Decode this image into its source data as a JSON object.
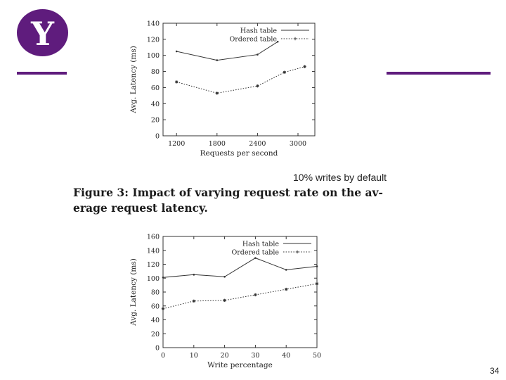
{
  "logo": {
    "letter": "Y",
    "color": "#5f1c7d"
  },
  "rule_color": "#5f1c7d",
  "annotation": "10% writes by default",
  "figure_caption": {
    "line1": "Figure 3: Impact of varying request rate on the av-",
    "line2": "erage request latency."
  },
  "page_number": "34",
  "chart_data": [
    {
      "type": "line",
      "xlabel": "Requests per second",
      "ylabel": "Avg. Latency (ms)",
      "categories": [
        "1200",
        "1800",
        "2400",
        "3000"
      ],
      "x": [
        1200,
        1800,
        2400,
        2700,
        3000
      ],
      "xlim": [
        1000,
        3250
      ],
      "ylim": [
        0,
        140
      ],
      "yticks": [
        0,
        20,
        40,
        60,
        80,
        100,
        120,
        140
      ],
      "legend_position": "top-right",
      "series": [
        {
          "name": "Hash table",
          "style": "solid",
          "x": [
            1200,
            1800,
            2400,
            2700
          ],
          "values": [
            105,
            94,
            101,
            117
          ]
        },
        {
          "name": "Ordered table",
          "style": "dotted",
          "x": [
            1200,
            1800,
            2400,
            2800,
            3100
          ],
          "values": [
            67,
            53,
            62,
            79,
            86
          ]
        }
      ]
    },
    {
      "type": "line",
      "xlabel": "Write percentage",
      "ylabel": "Avg. Latency (ms)",
      "categories": [
        "0",
        "10",
        "20",
        "30",
        "40",
        "50"
      ],
      "x": [
        0,
        10,
        20,
        30,
        40,
        50
      ],
      "xlim": [
        0,
        50
      ],
      "ylim": [
        0,
        160
      ],
      "yticks": [
        0,
        20,
        40,
        60,
        80,
        100,
        120,
        140,
        160
      ],
      "legend_position": "top-right",
      "series": [
        {
          "name": "Hash table",
          "style": "solid",
          "values": [
            101,
            105,
            102,
            129,
            112,
            117
          ]
        },
        {
          "name": "Ordered table",
          "style": "dotted",
          "values": [
            56,
            67,
            68,
            76,
            84,
            92
          ]
        }
      ]
    }
  ]
}
